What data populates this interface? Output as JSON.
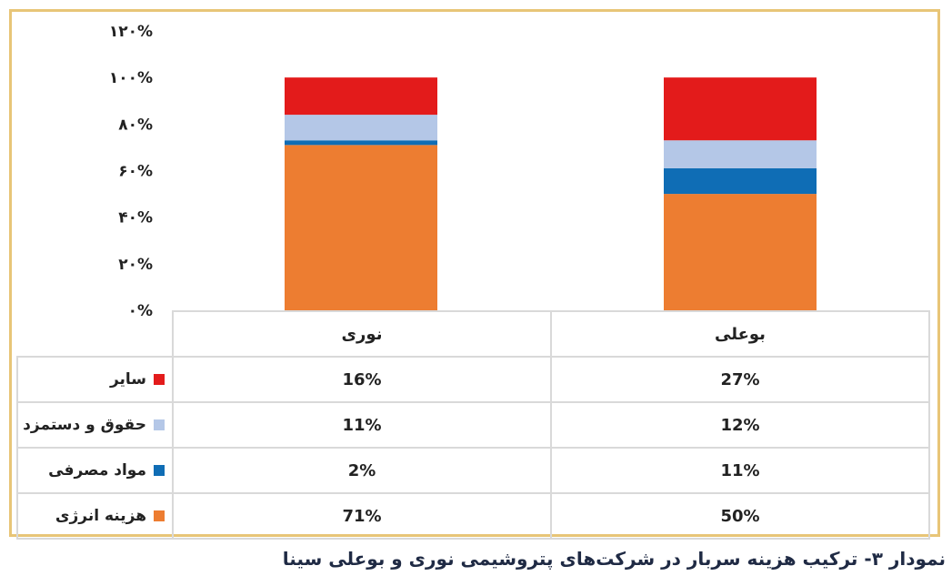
{
  "caption": "نمودار ۳- ترکیب هزینه سربار در شرکت‌های پتروشیمی نوری و بوعلی سینا",
  "chart_data": {
    "type": "bar",
    "stacked": true,
    "categories": [
      "نوری",
      "بوعلی"
    ],
    "series": [
      {
        "name": "هزینه انرژی",
        "values": [
          71,
          50
        ],
        "labels": [
          "71%",
          "50%"
        ],
        "color": "#ed7d31"
      },
      {
        "name": "مواد مصرفی",
        "values": [
          2,
          11
        ],
        "labels": [
          "2%",
          "11%"
        ],
        "color": "#0f6db5"
      },
      {
        "name": "حقوق و دستمزد",
        "values": [
          11,
          12
        ],
        "labels": [
          "11%",
          "12%"
        ],
        "color": "#b4c7e7"
      },
      {
        "name": "سایر",
        "values": [
          16,
          27
        ],
        "labels": [
          "16%",
          "27%"
        ],
        "color": "#e31b1b"
      }
    ],
    "ylim": [
      0,
      120
    ],
    "yticks": [
      0,
      20,
      40,
      60,
      80,
      100,
      120
    ],
    "ytick_labels": [
      "۰%",
      "۲۰%",
      "۴۰%",
      "۶۰%",
      "۸۰%",
      "۱۰۰%",
      "۱۲۰%"
    ],
    "grid": false,
    "legend": "data-table"
  }
}
